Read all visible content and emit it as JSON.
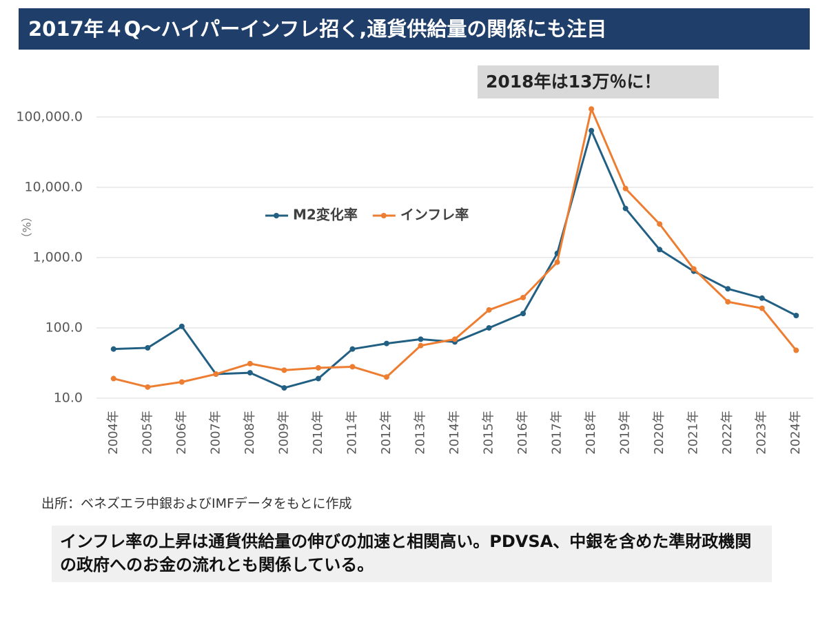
{
  "chart_data": {
    "type": "line",
    "title": "2017年４Q～ハイパーインフレ招く,通貨供給量の関係にも注目",
    "annotation": "2018年は13万％に！",
    "ylabel": "（%）",
    "source": "出所：ベネズエラ中銀およびIMFデータをもとに作成",
    "note": "インフレ率の上昇は通貨供給量の伸びの加速と相関高い。PDVSA、中銀を含めた準財政機関の政府へのお金の流れとも関係している。",
    "categories": [
      "2004年",
      "2005年",
      "2006年",
      "2007年",
      "2008年",
      "2009年",
      "2010年",
      "2011年",
      "2012年",
      "2013年",
      "2014年",
      "2015年",
      "2016年",
      "2017年",
      "2018年",
      "2019年",
      "2020年",
      "2021年",
      "2022年",
      "2023年",
      "2024年"
    ],
    "series": [
      {
        "name": "M2変化率",
        "color": "#215f83",
        "values": [
          50,
          52,
          105,
          22,
          23,
          14,
          19,
          50,
          60,
          69,
          63,
          100,
          160,
          1150,
          64000,
          5000,
          1300,
          640,
          360,
          265,
          150
        ]
      },
      {
        "name": "インフレ率",
        "color": "#ed7d31",
        "values": [
          19,
          14.4,
          17,
          22,
          31,
          25,
          27,
          28,
          20,
          56,
          69,
          180,
          270,
          860,
          130000,
          9600,
          3000,
          690,
          235,
          190,
          48
        ]
      }
    ],
    "log_scale": true,
    "ylim": [
      10,
      160000
    ],
    "yticks": [
      {
        "value": 10,
        "label": "10.0"
      },
      {
        "value": 100,
        "label": "100.0"
      },
      {
        "value": 1000,
        "label": "1,000.0"
      },
      {
        "value": 10000,
        "label": "10,000.0"
      },
      {
        "value": 100000,
        "label": "100,000.0"
      }
    ],
    "grid": true,
    "legend": "center left"
  }
}
